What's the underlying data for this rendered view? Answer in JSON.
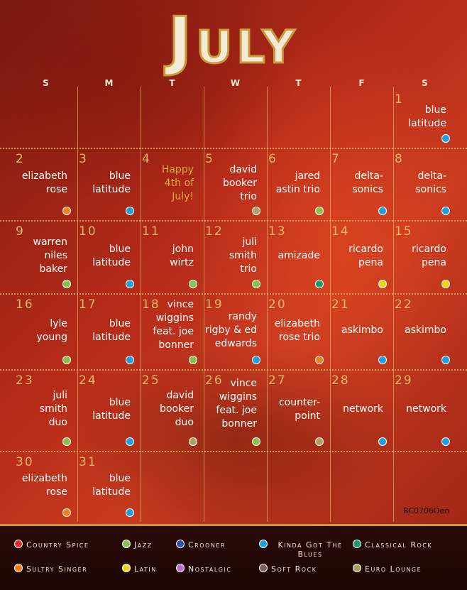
{
  "title": "July",
  "weekdays": [
    "S",
    "M",
    "T",
    "W",
    "T",
    "F",
    "S"
  ],
  "weeks": [
    [
      null,
      null,
      null,
      null,
      null,
      null,
      {
        "day": "1",
        "lines": [
          "blue",
          "latitude"
        ],
        "color": "#1ea0e0"
      }
    ],
    [
      {
        "day": "2",
        "lines": [
          "elizabeth",
          "rose"
        ],
        "color": "#f08020"
      },
      {
        "day": "3",
        "lines": [
          "blue",
          "latitude"
        ],
        "color": "#1ea0e0"
      },
      {
        "day": "4",
        "lines": [
          "Happy",
          "4th of",
          "July!"
        ],
        "text_color": "#d9a93a"
      },
      {
        "day": "5",
        "lines": [
          "david",
          "booker",
          "trio"
        ],
        "color": "#b0a060"
      },
      {
        "day": "6",
        "lines": [
          "jared",
          "astin trio"
        ],
        "color": "#8dc04a"
      },
      {
        "day": "7",
        "lines": [
          "delta-",
          "sonics"
        ],
        "color": "#1ea0e0"
      },
      {
        "day": "8",
        "lines": [
          "delta-",
          "sonics"
        ],
        "color": "#1ea0e0"
      }
    ],
    [
      {
        "day": "9",
        "lines": [
          "warren",
          "niles",
          "baker"
        ],
        "color": "#8dc04a"
      },
      {
        "day": "10",
        "lines": [
          "blue",
          "latitude"
        ],
        "color": "#1ea0e0"
      },
      {
        "day": "11",
        "lines": [
          "john",
          "wirtz"
        ],
        "color": "#8dc04a"
      },
      {
        "day": "12",
        "lines": [
          "juli",
          "smith",
          "trio"
        ],
        "color": "#8dc04a"
      },
      {
        "day": "13",
        "lines": [
          "amizade"
        ],
        "color": "#1a9a70"
      },
      {
        "day": "14",
        "lines": [
          "ricardo",
          "pena"
        ],
        "color": "#f5d020"
      },
      {
        "day": "15",
        "lines": [
          "ricardo",
          "pena"
        ],
        "color": "#f5d020"
      }
    ],
    [
      {
        "day": "16",
        "lines": [
          "lyle",
          "young"
        ],
        "color": "#8dc04a"
      },
      {
        "day": "17",
        "lines": [
          "blue",
          "latitude"
        ],
        "color": "#1ea0e0"
      },
      {
        "day": "18",
        "lines": [
          "vince",
          "wiggins",
          "feat. joe",
          "bonner"
        ],
        "color": "#8dc04a"
      },
      {
        "day": "19",
        "lines": [
          "randy",
          "rigby & ed",
          "edwards"
        ],
        "color": "#1ea0e0"
      },
      {
        "day": "20",
        "lines": [
          "elizabeth",
          "rose trio"
        ],
        "color": "#f08020"
      },
      {
        "day": "21",
        "lines": [
          "askimbo"
        ],
        "color": "#1ea0e0"
      },
      {
        "day": "22",
        "lines": [
          "askimbo"
        ],
        "color": "#1ea0e0"
      }
    ],
    [
      {
        "day": "23",
        "lines": [
          "juli",
          "smith",
          "duo"
        ],
        "color": "#8dc04a"
      },
      {
        "day": "24",
        "lines": [
          "blue",
          "latitude"
        ],
        "color": "#1ea0e0"
      },
      {
        "day": "25",
        "lines": [
          "david",
          "booker",
          "duo"
        ],
        "color": "#b0a060"
      },
      {
        "day": "26",
        "lines": [
          "vince",
          "wiggins",
          "feat. joe",
          "bonner"
        ],
        "color": "#8dc04a"
      },
      {
        "day": "27",
        "lines": [
          "counter-",
          "point"
        ],
        "color": "#b0a060"
      },
      {
        "day": "28",
        "lines": [
          "network"
        ],
        "color": "#1ea0e0"
      },
      {
        "day": "29",
        "lines": [
          "network"
        ],
        "color": "#1ea0e0"
      }
    ],
    [
      {
        "day": "30",
        "lines": [
          "elizabeth",
          "rose"
        ],
        "color": "#f08020"
      },
      {
        "day": "31",
        "lines": [
          "blue",
          "latitude"
        ],
        "color": "#1ea0e0"
      },
      null,
      null,
      null,
      null,
      null
    ]
  ],
  "code": "BC0706Den",
  "legend": [
    {
      "label": "Country Spice",
      "color": "#e0302a"
    },
    {
      "label": "Jazz",
      "color": "#8dc04a"
    },
    {
      "label": "Crooner",
      "color": "#3050b0"
    },
    {
      "label": "Kinda Got The Blues",
      "color": "#1ea0e0"
    },
    {
      "label": "Classical Rock",
      "color": "#1a9a70"
    },
    {
      "label": "Sultry Singer",
      "color": "#f08020"
    },
    {
      "label": "Latin",
      "color": "#f5d020"
    },
    {
      "label": "Nostalgic",
      "color": "#c070c0"
    },
    {
      "label": "Soft Rock",
      "color": "#806050"
    },
    {
      "label": "Euro Lounge",
      "color": "#b0a060"
    }
  ]
}
